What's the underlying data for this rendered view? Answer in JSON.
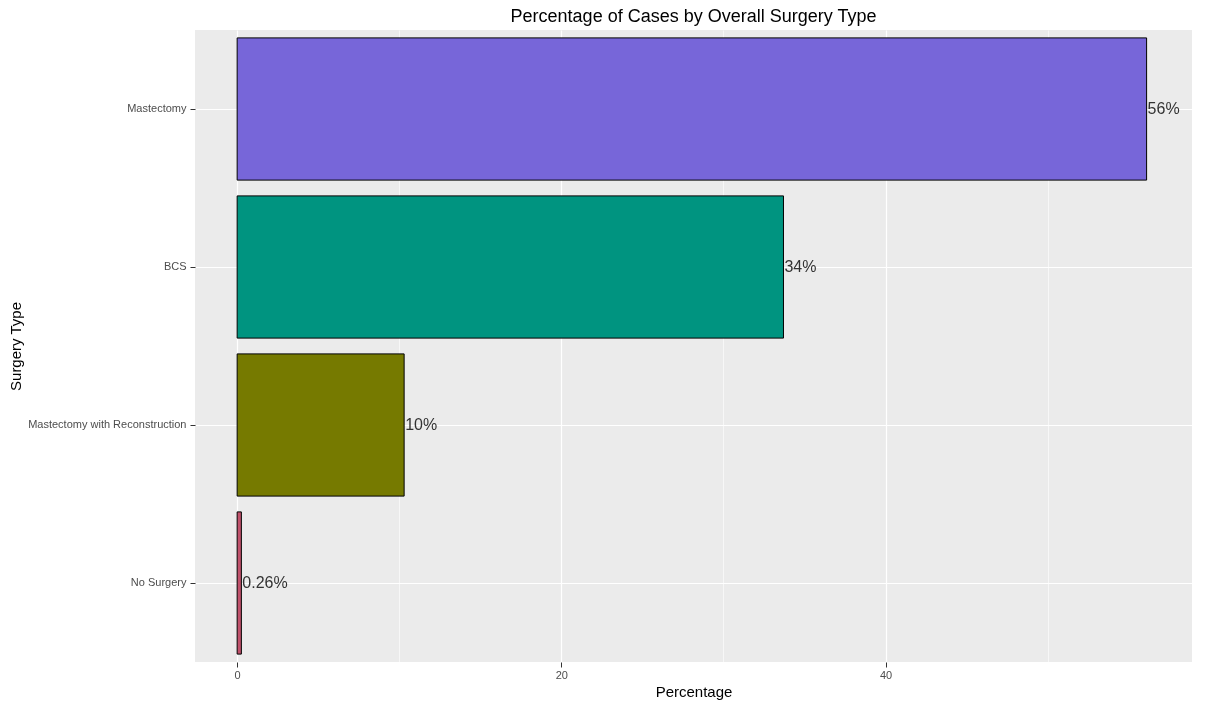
{
  "chart_data": {
    "type": "bar",
    "orientation": "horizontal",
    "title": "Percentage of Cases by Overall Surgery Type",
    "xlabel": "Percentage",
    "ylabel": "Surgery Type",
    "categories": [
      "Mastectomy",
      "BCS",
      "Mastectomy with Reconstruction",
      "No Surgery"
    ],
    "values": [
      56.1,
      33.7,
      10.3,
      0.26
    ],
    "value_labels": [
      "56%",
      "34%",
      "10%",
      "0.26%"
    ],
    "colors": [
      "#7766d9",
      "#009480",
      "#767a00",
      "#c0516b"
    ],
    "xlim": [
      -2.6,
      58.9
    ],
    "xticks": [
      0,
      {
        "value": 10,
        "label": null
      },
      20,
      {
        "value": 30,
        "label": null
      },
      40,
      {
        "value": 50,
        "label": null
      }
    ],
    "grid": true,
    "legend": false
  }
}
